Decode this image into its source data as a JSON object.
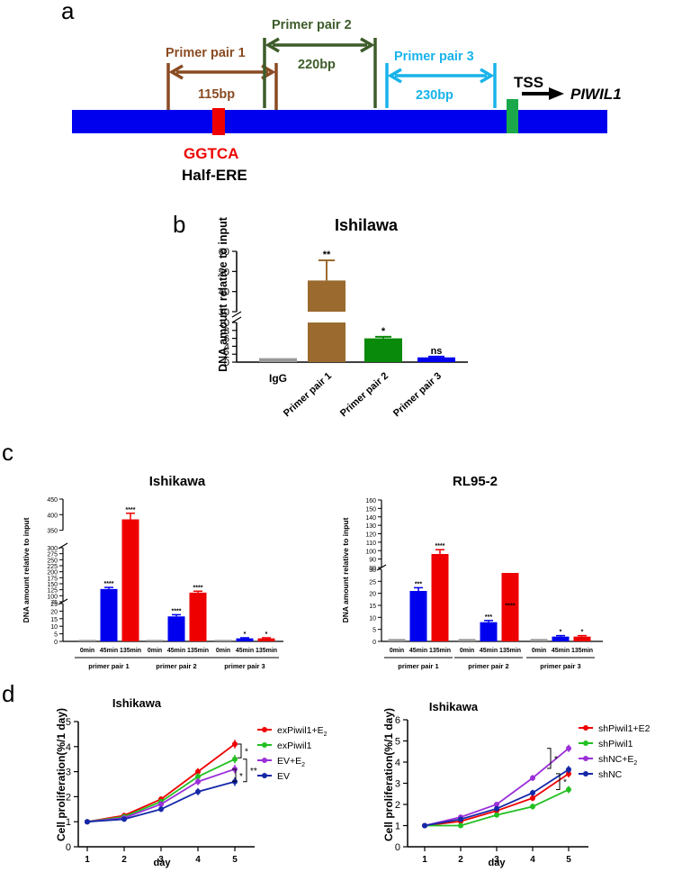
{
  "colors": {
    "blue": "#0000ee",
    "red": "#ee0000",
    "brown": "#8a4b22",
    "brownBar": "#9a6a2e",
    "darkGreen": "#3d5c2a",
    "green": "#0a8a0a",
    "lightBlue": "#19b3ea",
    "tssGreen": "#1aa84a",
    "gray": "#999999",
    "navy": "#1428a8",
    "purple": "#9b30d8",
    "lineGreen": "#22c022"
  },
  "panel_a": {
    "label": "a",
    "pair1_label": "Primer pair 1",
    "pair1_size": "115bp",
    "pair2_label": "Primer pair 2",
    "pair2_size": "220bp",
    "pair3_label": "Primer pair 3",
    "pair3_size": "230bp",
    "tss": "TSS",
    "gene": "PIWIL1",
    "motif": "GGTCA",
    "element": "Half-ERE"
  },
  "chart_data": [
    {
      "panel": "b",
      "type": "bar",
      "title": "Ishilawa",
      "ylabel": "DNA amount relative to input",
      "categories": [
        "IgG",
        "Primer pair 1",
        "Primer pair  2",
        "Primer pair 3"
      ],
      "values": [
        1.0,
        45.5,
        6.0,
        1.2
      ],
      "errors": [
        0,
        10,
        0.4,
        0.2
      ],
      "significance": [
        "",
        "**",
        "*",
        "ns"
      ],
      "colors": [
        "#999999",
        "#9a6a2e",
        "#0a8a0a",
        "#0000ee"
      ],
      "axis_break": [
        10,
        30
      ],
      "lower_ticks": [
        "0",
        "2",
        "4",
        "6",
        "8",
        "10"
      ],
      "upper_ticks": [
        "30",
        "40",
        "50",
        "60"
      ]
    },
    {
      "panel": "c-left",
      "type": "bar",
      "title": "Ishikawa",
      "ylabel": "DNA amount relative to input",
      "time_labels": [
        "0min",
        "45min",
        "135min"
      ],
      "groups": [
        "primer pair 1",
        "primer pair 2",
        "primer pair 3"
      ],
      "series": [
        {
          "name": "0min",
          "color": "#999999",
          "values": [
            1,
            1,
            1
          ]
        },
        {
          "name": "45min",
          "color": "#0000ee",
          "values": [
            128,
            16.5,
            2
          ]
        },
        {
          "name": "135min",
          "color": "#ee0000",
          "values": [
            385,
            113,
            2
          ]
        }
      ],
      "significance": [
        [
          "",
          "****",
          "****"
        ],
        [
          "",
          "****",
          "****"
        ],
        [
          "",
          "*",
          "*"
        ]
      ],
      "segments": [
        "0-25",
        "25-75 (broken)",
        "75-300",
        "300-450"
      ],
      "ticks_low": [
        "0",
        "5",
        "10",
        "15",
        "20",
        "25"
      ],
      "ticks_mid": [
        "75",
        "100",
        "125",
        "150",
        "175",
        "200",
        "225",
        "250",
        "275",
        "300"
      ],
      "ticks_high": [
        "350",
        "400",
        "450"
      ]
    },
    {
      "panel": "c-right",
      "type": "bar",
      "title": "RL95-2",
      "ylabel": "DNA amount relative to input",
      "time_labels": [
        "0min",
        "45min",
        "135min"
      ],
      "groups": [
        "primer pair 1",
        "primer pair 2",
        "primer pair 3"
      ],
      "series": [
        {
          "name": "0min",
          "color": "#999999",
          "values": [
            1,
            1,
            1
          ]
        },
        {
          "name": "45min",
          "color": "#0000ee",
          "values": [
            21,
            8,
            2
          ]
        },
        {
          "name": "135min",
          "color": "#ee0000",
          "values": [
            96,
            28.5,
            2
          ]
        }
      ],
      "significance": [
        [
          "",
          "***",
          "****"
        ],
        [
          "",
          "***",
          "****"
        ],
        [
          "",
          "*",
          "*"
        ]
      ],
      "ticks_low": [
        "0",
        "5",
        "10",
        "15",
        "20",
        "25",
        "30"
      ],
      "ticks_high": [
        "80",
        "90",
        "100",
        "110",
        "120",
        "130",
        "140",
        "150",
        "160"
      ]
    },
    {
      "panel": "d-left",
      "type": "line",
      "title": "Ishikawa",
      "xlabel": "day",
      "ylabel": "Cell proliferation(%/1 day)",
      "x": [
        1,
        2,
        3,
        4,
        5
      ],
      "ylim": [
        0,
        5
      ],
      "series": [
        {
          "name": "exPiwil1+E2",
          "color": "#ee0000",
          "values": [
            1.0,
            1.25,
            1.9,
            3.0,
            4.1
          ]
        },
        {
          "name": "exPiwil1",
          "color": "#22c022",
          "values": [
            1.0,
            1.2,
            1.8,
            2.8,
            3.5
          ]
        },
        {
          "name": "EV+E2",
          "color": "#9b30d8",
          "values": [
            1.0,
            1.15,
            1.7,
            2.6,
            3.1
          ]
        },
        {
          "name": "EV",
          "color": "#1428a8",
          "values": [
            1.0,
            1.1,
            1.5,
            2.2,
            2.6
          ]
        }
      ],
      "legend": [
        {
          "main": "exPiwil1+E",
          "sub": "2"
        },
        {
          "main": "exPiwil1",
          "sub": ""
        },
        {
          "main": "EV+E",
          "sub": "2"
        },
        {
          "main": "EV",
          "sub": ""
        }
      ],
      "significance": [
        "*",
        "*",
        "**"
      ]
    },
    {
      "panel": "d-right",
      "type": "line",
      "title": "Ishikawa",
      "xlabel": "day",
      "ylabel": "Cell proliferation(%/1 day)",
      "x": [
        1,
        2,
        3,
        4,
        5
      ],
      "ylim": [
        0,
        6
      ],
      "series": [
        {
          "name": "shPiwil1+E2",
          "color": "#ee0000",
          "values": [
            1.0,
            1.2,
            1.7,
            2.3,
            3.45
          ]
        },
        {
          "name": "shPiwil1",
          "color": "#22c022",
          "values": [
            1.0,
            1.0,
            1.5,
            1.9,
            2.7
          ]
        },
        {
          "name": "shNC+E2",
          "color": "#9b30d8",
          "values": [
            1.0,
            1.4,
            2.0,
            3.25,
            4.65
          ]
        },
        {
          "name": "shNC",
          "color": "#1428a8",
          "values": [
            1.0,
            1.3,
            1.8,
            2.55,
            3.65
          ]
        }
      ],
      "legend": [
        {
          "main": "shPiwil1+E2",
          "sub": ""
        },
        {
          "main": "shPiwil1",
          "sub": ""
        },
        {
          "main": "shNC+E",
          "sub": "2"
        },
        {
          "main": "shNC",
          "sub": ""
        }
      ],
      "significance": [
        "*",
        "*"
      ]
    }
  ],
  "panel_labels": {
    "b": "b",
    "c": "c",
    "d": "d"
  },
  "axis_words": {
    "day": "day"
  }
}
